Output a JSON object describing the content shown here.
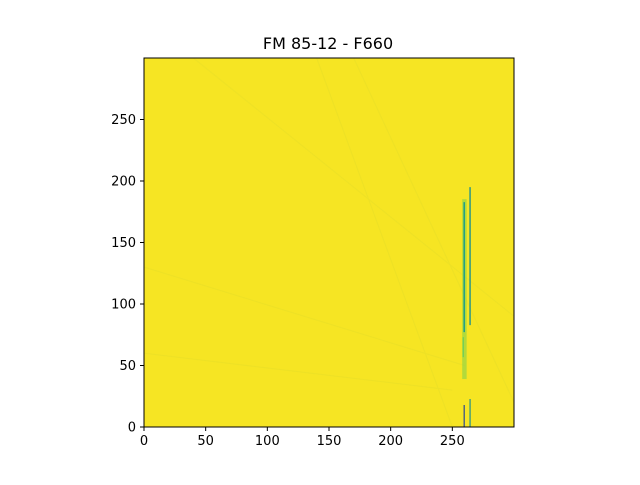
{
  "chart_data": {
    "type": "heatmap",
    "title": "FM 85-12 - F660",
    "xlabel": "",
    "ylabel": "",
    "xlim": [
      0,
      300
    ],
    "ylim": [
      0,
      300
    ],
    "x_ticks": [
      0,
      50,
      100,
      150,
      200,
      250
    ],
    "y_ticks": [
      0,
      50,
      100,
      150,
      200,
      250
    ],
    "origin": "lower",
    "colormap": "viridis",
    "colorbar": false,
    "grid": false,
    "background_color": "#f6e523",
    "features": [
      {
        "kind": "bright-vertical-streak",
        "x_range": [
          258,
          266
        ],
        "y_range": [
          0,
          195
        ],
        "color": "#1f9e89"
      }
    ]
  }
}
